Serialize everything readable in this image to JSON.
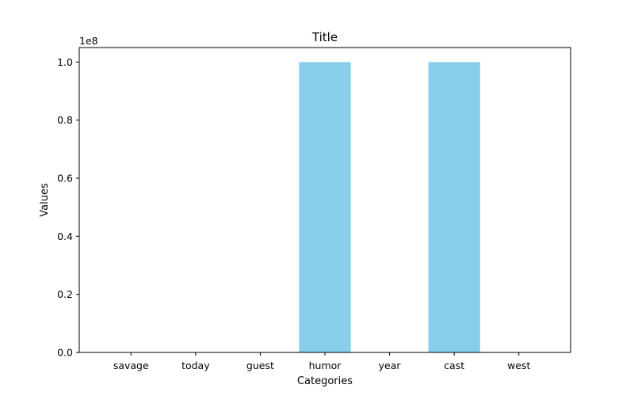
{
  "chart_data": {
    "type": "bar",
    "title": "Title",
    "xlabel": "Categories",
    "ylabel": "Values",
    "categories": [
      "savage",
      "today",
      "guest",
      "humor",
      "year",
      "cast",
      "west"
    ],
    "values": [
      0,
      0,
      0,
      100000000,
      0,
      100000000,
      0
    ],
    "ylim": [
      0,
      105000000
    ],
    "yticks": [
      0,
      20000000,
      40000000,
      60000000,
      80000000,
      100000000
    ],
    "ytick_labels": [
      "0.0",
      "0.2",
      "0.4",
      "0.6",
      "0.8",
      "1.0"
    ],
    "y_offset_label": "1e8",
    "bar_color": "#87ceeb",
    "grid": false,
    "legend": "none"
  }
}
